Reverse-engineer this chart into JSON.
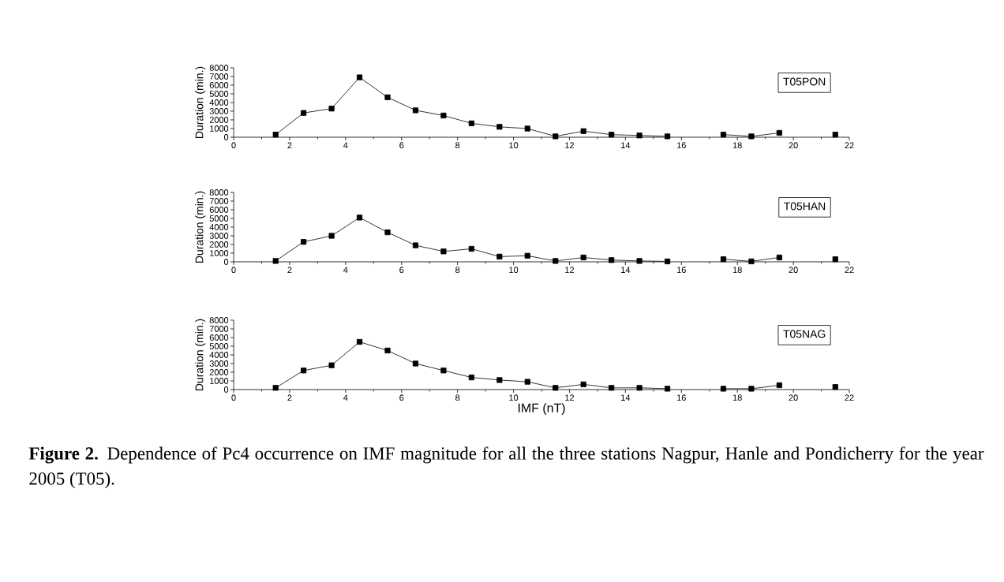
{
  "chart_data": [
    {
      "type": "line",
      "ylabel": "Duration (min.)",
      "x": [
        1.5,
        2.5,
        3.5,
        4.5,
        5.5,
        6.5,
        7.5,
        8.5,
        9.5,
        10.5,
        11.5,
        12.5,
        13.5,
        14.5,
        15.5,
        16.5,
        17.5,
        18.5,
        19.5,
        20.5,
        21.5
      ],
      "series": [
        {
          "name": "T05PON",
          "color": "#000000",
          "values": [
            300,
            2800,
            3300,
            6900,
            4600,
            3100,
            2500,
            1600,
            1200,
            1000,
            100,
            700,
            300,
            200,
            100,
            null,
            300,
            100,
            500,
            null,
            300
          ]
        }
      ],
      "xlim": [
        0,
        22
      ],
      "xticks": [
        0,
        2,
        4,
        6,
        8,
        10,
        12,
        14,
        16,
        18,
        20,
        22
      ],
      "ylim": [
        0,
        8000
      ],
      "yticks": [
        0,
        1000,
        2000,
        3000,
        4000,
        5000,
        6000,
        7000,
        8000
      ],
      "marker": "square",
      "line_style": "solid",
      "legend": "top right"
    },
    {
      "type": "line",
      "ylabel": "Duration (min.)",
      "x": [
        1.5,
        2.5,
        3.5,
        4.5,
        5.5,
        6.5,
        7.5,
        8.5,
        9.5,
        10.5,
        11.5,
        12.5,
        13.5,
        14.5,
        15.5,
        16.5,
        17.5,
        18.5,
        19.5,
        20.5,
        21.5
      ],
      "series": [
        {
          "name": "T05HAN",
          "color": "#000000",
          "values": [
            100,
            2300,
            3000,
            5100,
            3400,
            1900,
            1200,
            1500,
            600,
            700,
            100,
            500,
            200,
            100,
            50,
            null,
            300,
            50,
            500,
            null,
            300
          ]
        }
      ],
      "xlim": [
        0,
        22
      ],
      "xticks": [
        0,
        2,
        4,
        6,
        8,
        10,
        12,
        14,
        16,
        18,
        20,
        22
      ],
      "ylim": [
        0,
        8000
      ],
      "yticks": [
        0,
        1000,
        2000,
        3000,
        4000,
        5000,
        6000,
        7000,
        8000
      ],
      "marker": "square",
      "line_style": "solid",
      "legend": "top right"
    },
    {
      "type": "line",
      "ylabel": "Duration (min.)",
      "xlabel": "IMF (nT)",
      "x": [
        1.5,
        2.5,
        3.5,
        4.5,
        5.5,
        6.5,
        7.5,
        8.5,
        9.5,
        10.5,
        11.5,
        12.5,
        13.5,
        14.5,
        15.5,
        16.5,
        17.5,
        18.5,
        19.5,
        20.5,
        21.5
      ],
      "series": [
        {
          "name": "T05NAG",
          "color": "#000000",
          "values": [
            200,
            2200,
            2800,
            5500,
            4500,
            3000,
            2200,
            1400,
            1100,
            900,
            200,
            600,
            200,
            200,
            100,
            null,
            100,
            100,
            500,
            null,
            300
          ]
        }
      ],
      "xlim": [
        0,
        22
      ],
      "xticks": [
        0,
        2,
        4,
        6,
        8,
        10,
        12,
        14,
        16,
        18,
        20,
        22
      ],
      "ylim": [
        0,
        8000
      ],
      "yticks": [
        0,
        1000,
        2000,
        3000,
        4000,
        5000,
        6000,
        7000,
        8000
      ],
      "marker": "square",
      "line_style": "solid",
      "legend": "top right",
      "annotations": [
        "**Figure 2.** Dependence of Pc4 occurrence on IMF magnitude for all the three stations Nagpur, Hanle and Pondicherry for the year 2005 (T05)."
      ]
    }
  ]
}
